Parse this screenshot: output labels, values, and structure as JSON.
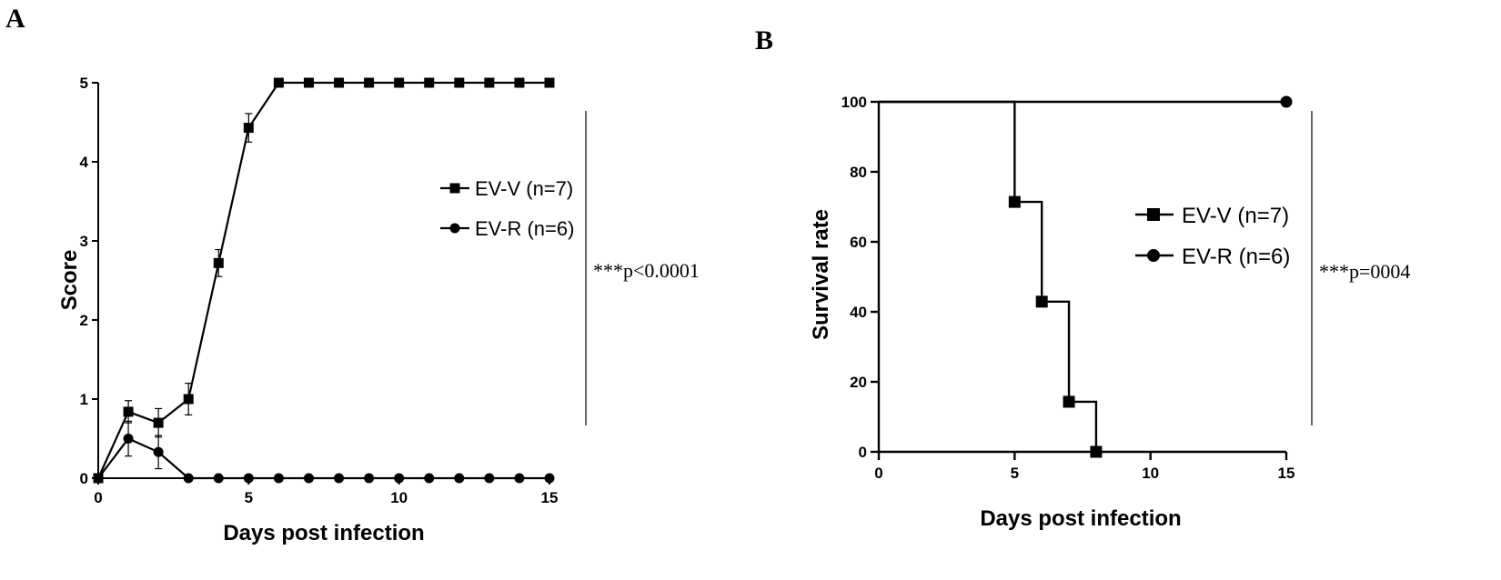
{
  "chart_data": [
    {
      "panel": "A",
      "type": "line",
      "xlabel": "Days post infection",
      "ylabel": "Score",
      "xlim": [
        0,
        15
      ],
      "ylim": [
        0,
        5
      ],
      "xticks": [
        "0",
        "5",
        "10",
        "15"
      ],
      "yticks": [
        "0",
        "1",
        "2",
        "3",
        "4",
        "5"
      ],
      "legend_position": "right",
      "series": [
        {
          "name": "EV-V (n=7)",
          "marker": "square",
          "x": [
            0,
            1,
            2,
            3,
            4,
            5,
            6,
            7,
            8,
            9,
            10,
            11,
            12,
            13,
            14,
            15
          ],
          "values": [
            0,
            0.84,
            0.7,
            1.0,
            2.72,
            4.43,
            5,
            5,
            5,
            5,
            5,
            5,
            5,
            5,
            5,
            5
          ],
          "error": [
            0,
            0.14,
            0.18,
            0.2,
            0.17,
            0.18,
            0,
            0,
            0,
            0,
            0,
            0,
            0,
            0,
            0,
            0
          ]
        },
        {
          "name": "EV-R (n=6)",
          "marker": "circle",
          "x": [
            0,
            1,
            2,
            3,
            4,
            5,
            6,
            7,
            8,
            9,
            10,
            11,
            12,
            13,
            14,
            15
          ],
          "values": [
            0,
            0.5,
            0.33,
            0,
            0,
            0,
            0,
            0,
            0,
            0,
            0,
            0,
            0,
            0,
            0,
            0
          ],
          "error": [
            0,
            0.22,
            0.21,
            0,
            0,
            0,
            0,
            0,
            0,
            0,
            0,
            0,
            0,
            0,
            0,
            0
          ]
        }
      ],
      "annotation_stars": "***",
      "annotation_p": "p<0.0001"
    },
    {
      "panel": "B",
      "type": "line",
      "step": true,
      "xlabel": "Days post infection",
      "ylabel": "Survival rate",
      "xlim": [
        0,
        15
      ],
      "ylim": [
        0,
        100
      ],
      "xticks": [
        "0",
        "5",
        "10",
        "15"
      ],
      "yticks": [
        "0",
        "20",
        "40",
        "60",
        "80",
        "100"
      ],
      "legend_position": "right",
      "series": [
        {
          "name": "EV-V (n=7)",
          "marker": "square",
          "x": [
            0,
            5,
            6,
            7,
            8
          ],
          "values": [
            100,
            71.4,
            42.9,
            14.3,
            0
          ],
          "line_end_x": 8
        },
        {
          "name": "EV-R (n=6)",
          "marker": "circle",
          "x": [
            0,
            15
          ],
          "values": [
            100,
            100
          ],
          "line_end_x": 15
        }
      ],
      "annotation_stars": "***",
      "annotation_p": "p=0004"
    }
  ]
}
